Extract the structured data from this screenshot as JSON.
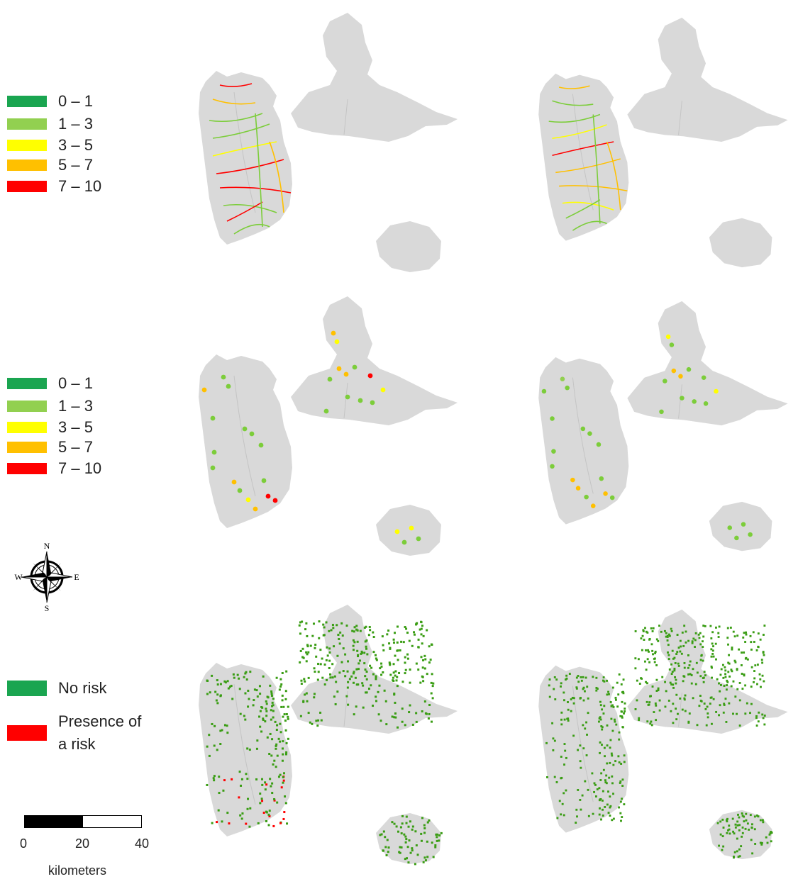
{
  "legends": {
    "score_classes_top": [
      "0 – 1",
      "1 – 3",
      "3 – 5",
      "5 – 7",
      "7 – 10"
    ],
    "score_classes_middle": [
      "0 – 1",
      "1 – 3",
      "3 – 5",
      "5 – 7",
      "7 – 10"
    ],
    "risk_classes": [
      "No risk",
      "Presence of a risk"
    ],
    "colors": {
      "class_0_1": "#1aa550",
      "class_1_3": "#92d050",
      "class_3_5": "#ffff00",
      "class_5_7": "#ffc000",
      "class_7_10": "#ff0000",
      "no_risk": "#1aa550",
      "risk": "#ff0000"
    }
  },
  "compass": {
    "n": "N",
    "s": "S",
    "e": "E",
    "w": "W"
  },
  "scale": {
    "ticks": [
      "0",
      "20",
      "40"
    ],
    "unit": "kilometers"
  },
  "map_style": {
    "land": "#d9d9d9",
    "river_green": "#7ccd3a",
    "cover_green": "#3a9d14"
  }
}
